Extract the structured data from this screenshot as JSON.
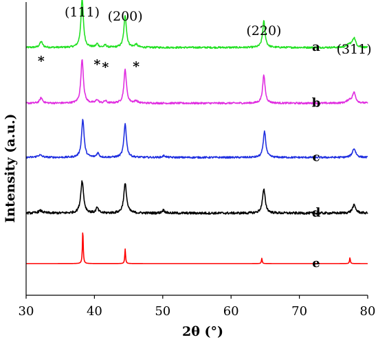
{
  "chart_data": {
    "type": "line",
    "title": "",
    "xlabel": "2θ (°)",
    "ylabel": "Intensity (a.u.)",
    "xlim": [
      30,
      80
    ],
    "x_ticks": [
      30,
      40,
      50,
      60,
      70,
      80
    ],
    "y_ticks_shown": false,
    "grid": false,
    "legend": "curve labels at right end of each trace",
    "peak_labels": [
      {
        "text": "(111)",
        "x": 38.2
      },
      {
        "text": "(200)",
        "x": 44.5
      },
      {
        "text": "(220)",
        "x": 64.8
      },
      {
        "text": "(311)",
        "x": 78.0
      }
    ],
    "star_marks": [
      {
        "text": "*",
        "x": 32.2
      },
      {
        "text": "*",
        "x": 40.4
      },
      {
        "text": "*",
        "x": 41.6
      },
      {
        "text": "*",
        "x": 46.1
      }
    ],
    "series": [
      {
        "name": "a",
        "color": "#22e022",
        "baseline": 0.845,
        "noise": 0.003,
        "peaks": [
          [
            32.2,
            0.02,
            0.25
          ],
          [
            38.2,
            0.165,
            0.22
          ],
          [
            40.4,
            0.012,
            0.2
          ],
          [
            41.6,
            0.008,
            0.2
          ],
          [
            44.5,
            0.11,
            0.22
          ],
          [
            46.1,
            0.01,
            0.25
          ],
          [
            64.8,
            0.09,
            0.22
          ],
          [
            77.3,
            0.01,
            0.4
          ],
          [
            78.0,
            0.032,
            0.28
          ]
        ]
      },
      {
        "name": "b",
        "color": "#e02de0",
        "baseline": 0.655,
        "noise": 0.003,
        "peaks": [
          [
            32.2,
            0.018,
            0.25
          ],
          [
            38.2,
            0.15,
            0.22
          ],
          [
            40.4,
            0.012,
            0.2
          ],
          [
            41.6,
            0.008,
            0.2
          ],
          [
            44.5,
            0.115,
            0.22
          ],
          [
            46.1,
            0.008,
            0.25
          ],
          [
            64.8,
            0.095,
            0.22
          ],
          [
            77.3,
            0.01,
            0.4
          ],
          [
            78.0,
            0.035,
            0.28
          ]
        ]
      },
      {
        "name": "c",
        "color": "#1f2fe0",
        "baseline": 0.47,
        "noise": 0.003,
        "peaks": [
          [
            32.0,
            0.008,
            0.4
          ],
          [
            38.3,
            0.13,
            0.22
          ],
          [
            40.5,
            0.015,
            0.2
          ],
          [
            44.5,
            0.115,
            0.22
          ],
          [
            50.2,
            0.006,
            0.25
          ],
          [
            64.9,
            0.09,
            0.22
          ],
          [
            78.0,
            0.03,
            0.3
          ]
        ]
      },
      {
        "name": "d",
        "color": "#000000",
        "baseline": 0.28,
        "noise": 0.004,
        "peaks": [
          [
            32.1,
            0.008,
            0.4
          ],
          [
            38.2,
            0.11,
            0.25
          ],
          [
            40.4,
            0.018,
            0.2
          ],
          [
            44.5,
            0.1,
            0.25
          ],
          [
            50.1,
            0.01,
            0.25
          ],
          [
            64.8,
            0.08,
            0.25
          ],
          [
            78.0,
            0.027,
            0.3
          ]
        ]
      },
      {
        "name": "e",
        "color": "#ff0000",
        "baseline": 0.108,
        "noise": 0.0,
        "peaks": [
          [
            38.3,
            0.115,
            0.07
          ],
          [
            44.5,
            0.05,
            0.07
          ],
          [
            64.5,
            0.018,
            0.07
          ],
          [
            77.4,
            0.02,
            0.07
          ]
        ]
      }
    ]
  }
}
